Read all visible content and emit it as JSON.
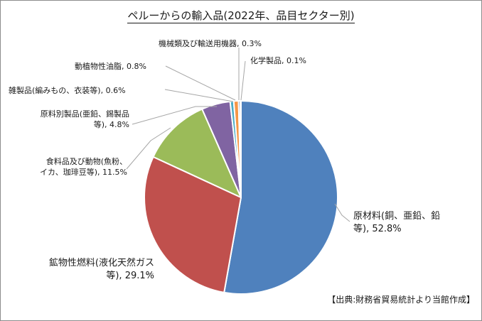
{
  "chart_data": {
    "type": "pie",
    "title": "ペルーからの輸入品(2022年、品目セクター別)",
    "start_angle_deg": 0,
    "direction": "clockwise",
    "slices": [
      {
        "label_lines": [
          "原材料(銅、亜鉛、鉛",
          "等), 52.8%"
        ],
        "category": "原材料(銅、亜鉛、鉛等)",
        "value": 52.8,
        "color": "#4f81bd"
      },
      {
        "label_lines": [
          "鉱物性燃料(液化天然ガス",
          "等), 29.1%"
        ],
        "category": "鉱物性燃料(液化天然ガス等)",
        "value": 29.1,
        "color": "#c0504d"
      },
      {
        "label_lines": [
          "食料品及び動物(魚粉、",
          "イカ、珈琲豆等), 11.5%"
        ],
        "category": "食料品及び動物(魚粉、イカ、珈琲豆等)",
        "value": 11.5,
        "color": "#9bbb59"
      },
      {
        "label_lines": [
          "原料別製品(亜鉛、錫製品",
          "等), 4.8%"
        ],
        "category": "原料別製品(亜鉛、錫製品等)",
        "value": 4.8,
        "color": "#8064a2"
      },
      {
        "label_lines": [
          "雑製品(編みもの、衣装等), 0.6%"
        ],
        "category": "雑製品(編みもの、衣装等)",
        "value": 0.6,
        "color": "#4bacc6"
      },
      {
        "label_lines": [
          "動植物性油脂, 0.8%"
        ],
        "category": "動植物性油脂",
        "value": 0.8,
        "color": "#f79646"
      },
      {
        "label_lines": [
          "機械類及び輸送用機器, 0.3%"
        ],
        "category": "機械類及び輸送用機器",
        "value": 0.3,
        "color": "#2c4d75"
      },
      {
        "label_lines": [
          "化学製品, 0.1%"
        ],
        "category": "化学製品",
        "value": 0.1,
        "color": "#772c2a"
      }
    ]
  },
  "source_note": "【出典:財務省貿易統計より当館作成】"
}
